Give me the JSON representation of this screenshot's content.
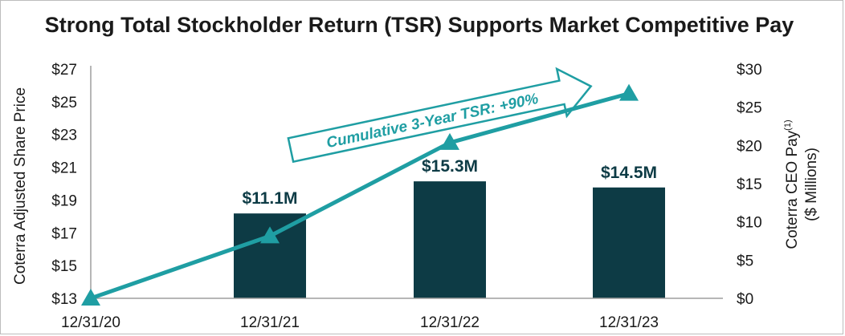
{
  "chart_data": {
    "type": "bar",
    "title": "Strong Total Stockholder Return (TSR) Supports Market Competitive Pay",
    "categories": [
      "12/31/20",
      "12/31/21",
      "12/31/22",
      "12/31/23"
    ],
    "y_left": {
      "label": "Coterra  Adjusted Share Price",
      "ylim": [
        13,
        27
      ],
      "ticks": [
        "$13",
        "$15",
        "$17",
        "$19",
        "$21",
        "$23",
        "$25",
        "$27"
      ],
      "tick_values": [
        13,
        15,
        17,
        19,
        21,
        23,
        25,
        27
      ]
    },
    "y_right": {
      "label_line1": "Coterra  CEO Pay",
      "label_superscript": "(1)",
      "label_line2": "($ Millions)",
      "ylim": [
        0,
        30
      ],
      "ticks": [
        "$0",
        "$5",
        "$10",
        "$15",
        "$20",
        "$25",
        "$30"
      ],
      "tick_values": [
        0,
        5,
        10,
        15,
        20,
        25,
        30
      ]
    },
    "series": [
      {
        "type": "bar",
        "axis": "right",
        "values": [
          null,
          11.1,
          15.3,
          14.5
        ],
        "data_labels": [
          "",
          "$11.1M",
          "$15.3M",
          "$14.5M"
        ],
        "color": "#0d3b45"
      },
      {
        "type": "line",
        "axis": "left",
        "marker": "triangle",
        "values": [
          13.0,
          16.8,
          22.5,
          25.5
        ],
        "color": "#1f9ea3"
      }
    ],
    "annotation": "Cumulative 3-Year TSR: +90%",
    "grid": false,
    "legend": "none"
  }
}
